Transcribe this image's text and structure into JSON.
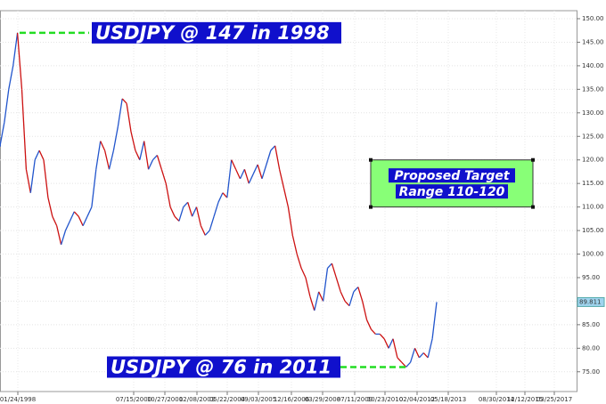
{
  "chart_data": {
    "type": "line",
    "x_labels": [
      "01/24/1998",
      "07/15/2000",
      "10/27/2001",
      "02/08/2003",
      "05/22/2004",
      "09/03/2005",
      "12/16/2006",
      "03/29/2008",
      "07/11/2009",
      "10/23/2010",
      "02/04/2012",
      "05/18/2013",
      "08/30/2014",
      "12/12/2015",
      "03/25/2017"
    ],
    "series": [
      {
        "name": "USDJPY",
        "up_color": "#2255cc",
        "down_color": "#cc1111",
        "values": [
          123,
          128,
          135,
          140,
          147,
          135,
          118,
          113,
          120,
          122,
          120,
          112,
          108,
          106,
          102,
          105,
          107,
          109,
          108,
          106,
          108,
          110,
          118,
          124,
          122,
          118,
          122,
          127,
          133,
          132,
          126,
          122,
          120,
          124,
          118,
          120,
          121,
          118,
          115,
          110,
          108,
          107,
          110,
          111,
          108,
          110,
          106,
          104,
          105,
          108,
          111,
          113,
          112,
          120,
          118,
          116,
          118,
          115,
          117,
          119,
          116,
          119,
          122,
          123,
          118,
          114,
          110,
          104,
          100,
          97,
          95,
          91,
          88,
          92,
          90,
          97,
          98,
          95,
          92,
          90,
          89,
          92,
          93,
          90,
          86,
          84,
          83,
          83,
          82,
          80,
          82,
          78,
          77,
          76,
          77,
          80,
          78,
          79,
          78,
          82,
          89.811
        ],
        "last_label": "89.811"
      }
    ],
    "ylim": [
      70.8,
      151.7
    ],
    "yticks": [
      {
        "value": 75,
        "label": "75.00"
      },
      {
        "value": 80,
        "label": "80.00"
      },
      {
        "value": 85,
        "label": "85.00"
      },
      {
        "value": 90,
        "label": "90.00"
      },
      {
        "value": 95,
        "label": "95.00"
      },
      {
        "value": 100,
        "label": "100.00"
      },
      {
        "value": 105,
        "label": "105.00"
      },
      {
        "value": 110,
        "label": "110.00"
      },
      {
        "value": 115,
        "label": "115.00"
      },
      {
        "value": 120,
        "label": "120.00"
      },
      {
        "value": 125,
        "label": "125.00"
      },
      {
        "value": 130,
        "label": "130.00"
      },
      {
        "value": 135,
        "label": "135.00"
      },
      {
        "value": 140,
        "label": "140.00"
      },
      {
        "value": 145,
        "label": "145.00"
      },
      {
        "value": 150,
        "label": "150.00"
      }
    ],
    "grid": true,
    "annotations": [
      {
        "text": "USDJPY @ 147 in 1998",
        "value": 147
      },
      {
        "text": "USDJPY @ 76 in 2011",
        "value": 76
      }
    ],
    "target": {
      "lines": [
        "Proposed Target",
        "Range 110-120"
      ],
      "low": 110,
      "high": 120
    }
  }
}
